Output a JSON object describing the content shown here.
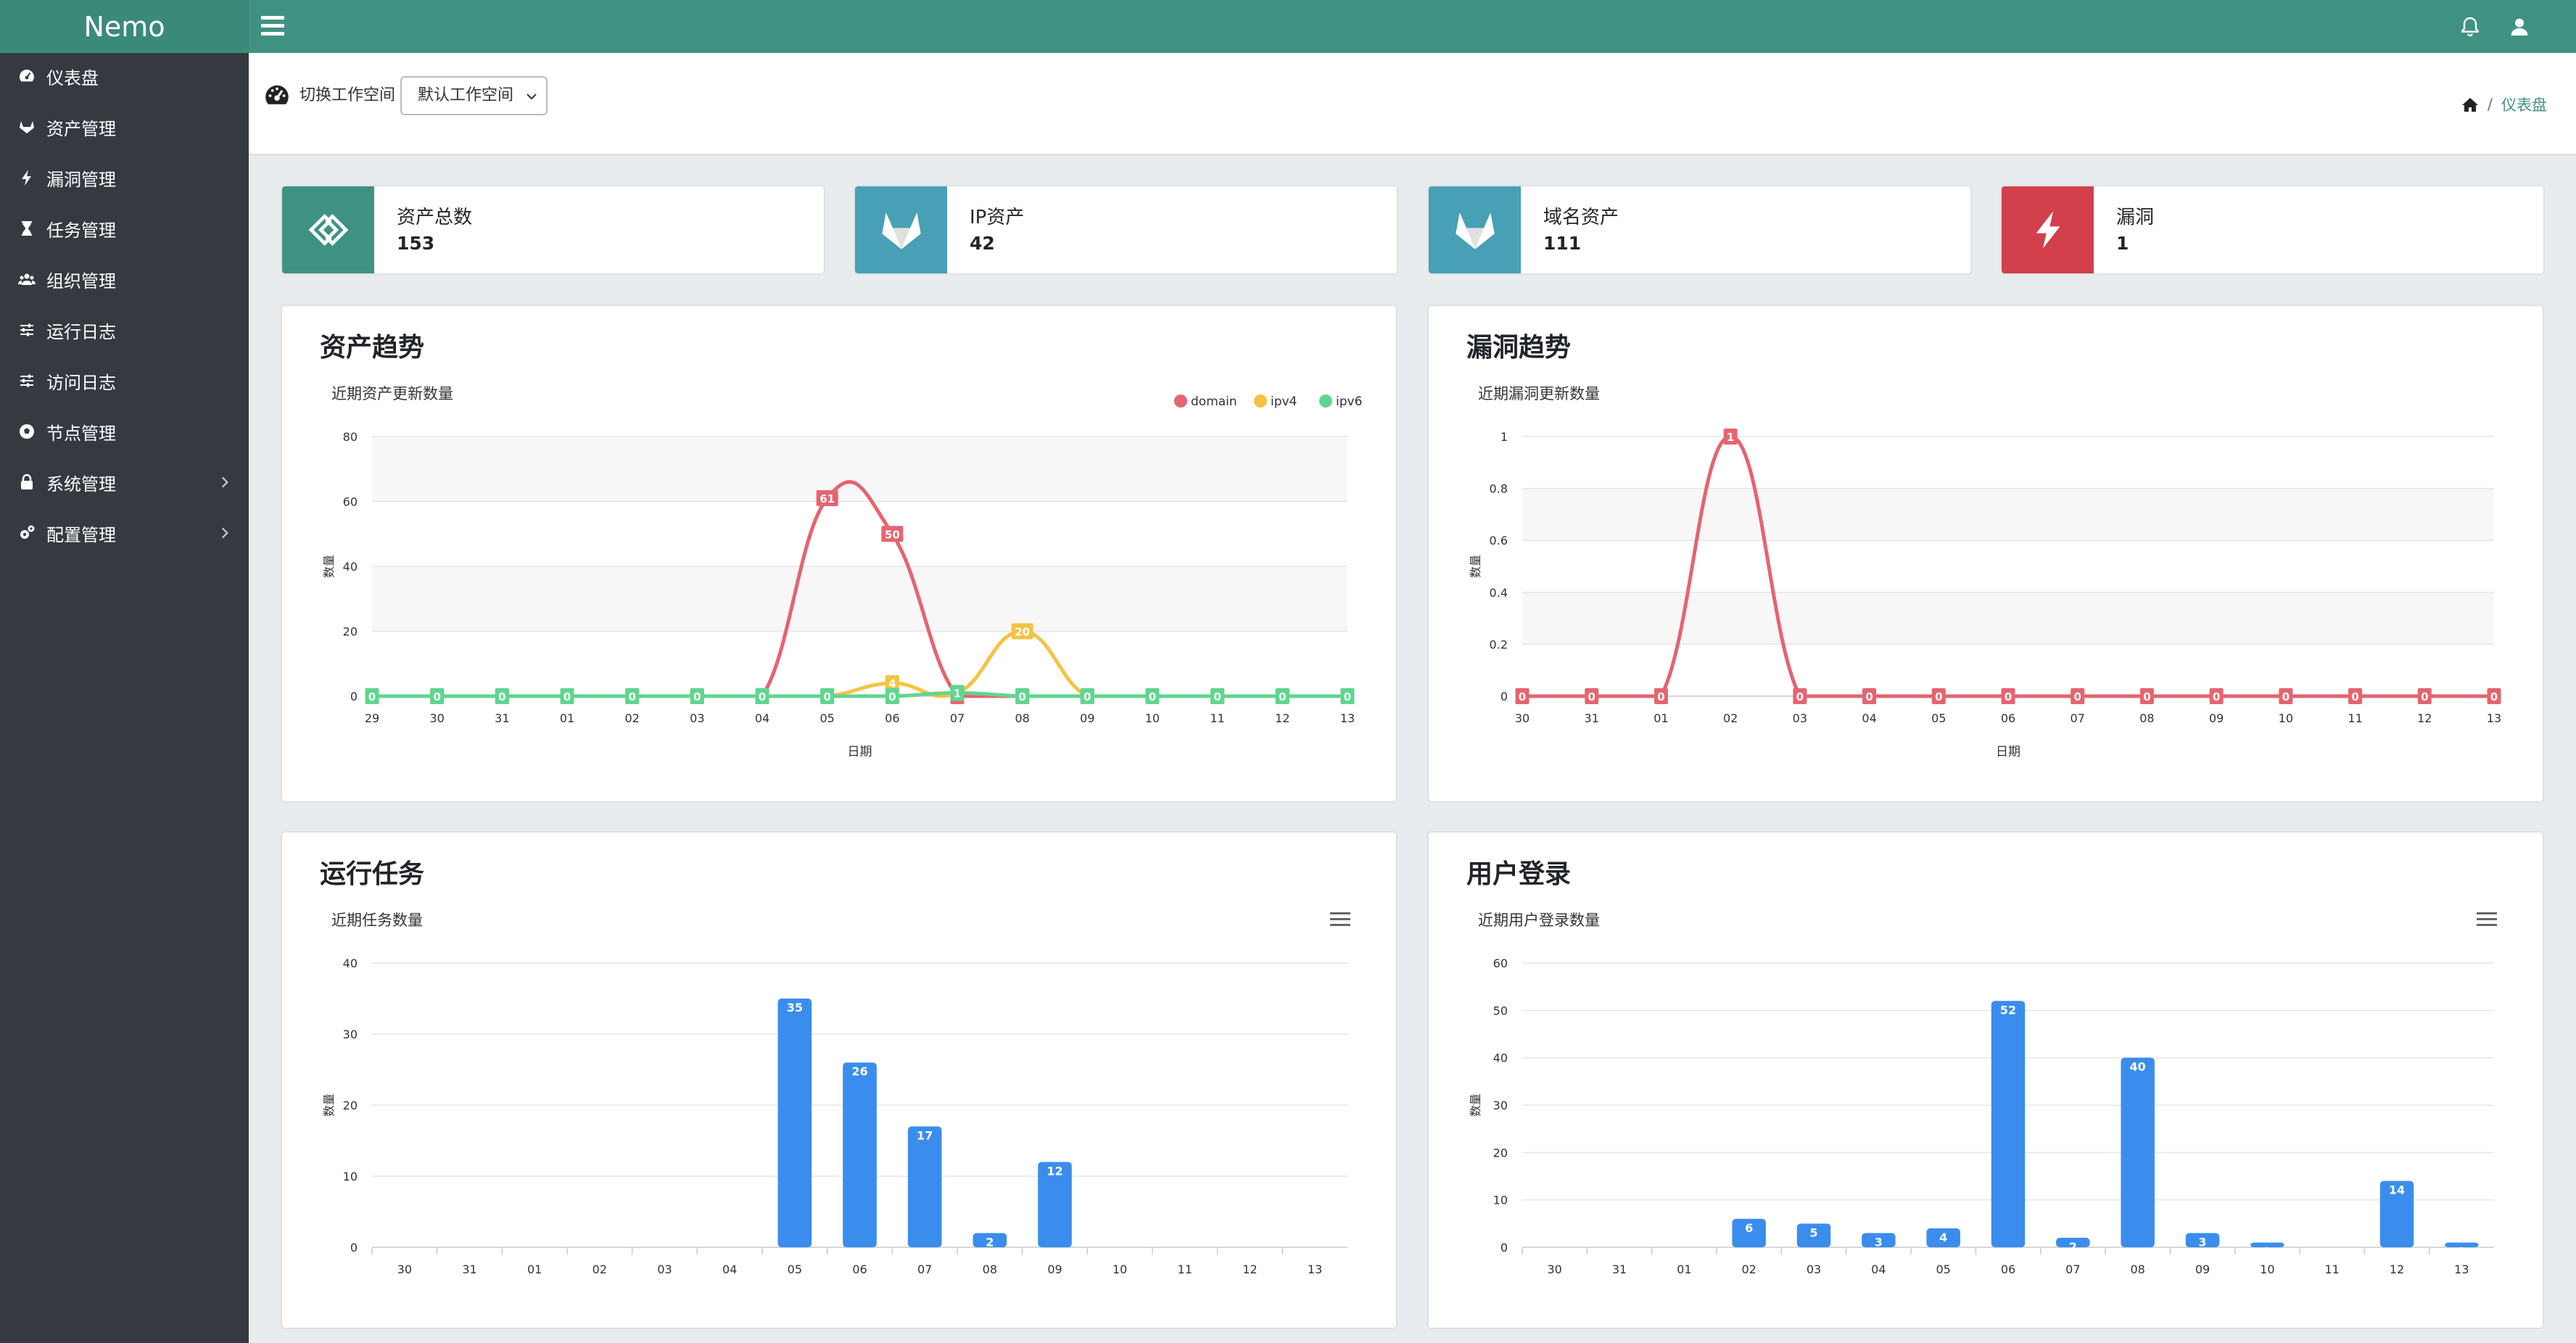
{
  "app": {
    "brand": "Nemo"
  },
  "sidebar": {
    "items": [
      {
        "label": "仪表盘",
        "icon": "dashboard-icon",
        "expand": false
      },
      {
        "label": "资产管理",
        "icon": "gitlab-icon",
        "expand": false
      },
      {
        "label": "漏洞管理",
        "icon": "bolt-icon",
        "expand": false
      },
      {
        "label": "任务管理",
        "icon": "hourglass-icon",
        "expand": false
      },
      {
        "label": "组织管理",
        "icon": "users-icon",
        "expand": false
      },
      {
        "label": "运行日志",
        "icon": "sliders-icon",
        "expand": false
      },
      {
        "label": "访问日志",
        "icon": "sliders-icon",
        "expand": false
      },
      {
        "label": "节点管理",
        "icon": "soccer-icon",
        "expand": false
      },
      {
        "label": "系统管理",
        "icon": "lock-icon",
        "expand": true
      },
      {
        "label": "配置管理",
        "icon": "cogs-icon",
        "expand": true
      }
    ]
  },
  "header": {
    "workspace_label": "切换工作空间",
    "workspace_value": "默认工作空间",
    "breadcrumb_current": "仪表盘"
  },
  "stats": [
    {
      "label": "资产总数",
      "value": "153",
      "color": "#3f9281",
      "icon": "exchange-icon"
    },
    {
      "label": "IP资产",
      "value": "42",
      "color": "#47a0b5",
      "icon": "gitlab-icon"
    },
    {
      "label": "域名资产",
      "value": "111",
      "color": "#47a0b5",
      "icon": "gitlab-icon"
    },
    {
      "label": "漏洞",
      "value": "1",
      "color": "#d1404b",
      "icon": "bolt-icon"
    }
  ],
  "cards": {
    "asset_trend": {
      "title": "资产趋势"
    },
    "vul_trend": {
      "title": "漏洞趋势"
    },
    "task_run": {
      "title": "运行任务"
    },
    "user_login": {
      "title": "用户登录"
    }
  },
  "chart_data": [
    {
      "type": "line",
      "title": "近期资产更新数量",
      "xlabel": "日期",
      "ylabel": "数量",
      "ylim": [
        0,
        80
      ],
      "yticks": [
        0,
        20,
        40,
        60,
        80
      ],
      "legend": "top-right",
      "categories": [
        "29",
        "30",
        "31",
        "01",
        "02",
        "03",
        "04",
        "05",
        "06",
        "07",
        "08",
        "09",
        "10",
        "11",
        "12",
        "13"
      ],
      "series": [
        {
          "name": "domain",
          "color": "#e5646f",
          "values": [
            0,
            0,
            0,
            0,
            0,
            0,
            0,
            61,
            50,
            0,
            0,
            0,
            0,
            0,
            0,
            0
          ]
        },
        {
          "name": "ipv4",
          "color": "#f4c343",
          "values": [
            0,
            0,
            0,
            0,
            0,
            0,
            0,
            0,
            4,
            1,
            20,
            0,
            0,
            0,
            0,
            0
          ]
        },
        {
          "name": "ipv6",
          "color": "#5fd68f",
          "values": [
            0,
            0,
            0,
            0,
            0,
            0,
            0,
            0,
            0,
            1,
            0,
            0,
            0,
            0,
            0,
            0
          ]
        }
      ]
    },
    {
      "type": "line",
      "title": "近期漏洞更新数量",
      "xlabel": "日期",
      "ylabel": "数量",
      "ylim": [
        0,
        1
      ],
      "yticks": [
        0,
        0.2,
        0.4,
        0.6,
        0.8,
        1
      ],
      "categories": [
        "30",
        "31",
        "01",
        "02",
        "03",
        "04",
        "05",
        "06",
        "07",
        "08",
        "09",
        "10",
        "11",
        "12",
        "13"
      ],
      "series": [
        {
          "color": "#e5646f",
          "values": [
            0,
            0,
            0,
            1,
            0,
            0,
            0,
            0,
            0,
            0,
            0,
            0,
            0,
            0,
            0
          ]
        }
      ]
    },
    {
      "type": "bar",
      "title": "近期任务数量",
      "ylabel": "数量",
      "ylim": [
        0,
        40
      ],
      "yticks": [
        0,
        10,
        20,
        30,
        40
      ],
      "categories": [
        "30",
        "31",
        "01",
        "02",
        "03",
        "04",
        "05",
        "06",
        "07",
        "08",
        "09",
        "10",
        "11",
        "12",
        "13"
      ],
      "values": [
        0,
        0,
        0,
        0,
        0,
        0,
        35,
        26,
        17,
        2,
        12,
        0,
        0,
        0,
        0
      ]
    },
    {
      "type": "bar",
      "title": "近期用户登录数量",
      "ylabel": "数量",
      "ylim": [
        0,
        60
      ],
      "yticks": [
        0,
        10,
        20,
        30,
        40,
        50,
        60
      ],
      "categories": [
        "30",
        "31",
        "01",
        "02",
        "03",
        "04",
        "05",
        "06",
        "07",
        "08",
        "09",
        "10",
        "11",
        "12",
        "13"
      ],
      "values": [
        0,
        0,
        0,
        6,
        5,
        3,
        4,
        52,
        2,
        40,
        3,
        1,
        0,
        14,
        1
      ]
    }
  ]
}
